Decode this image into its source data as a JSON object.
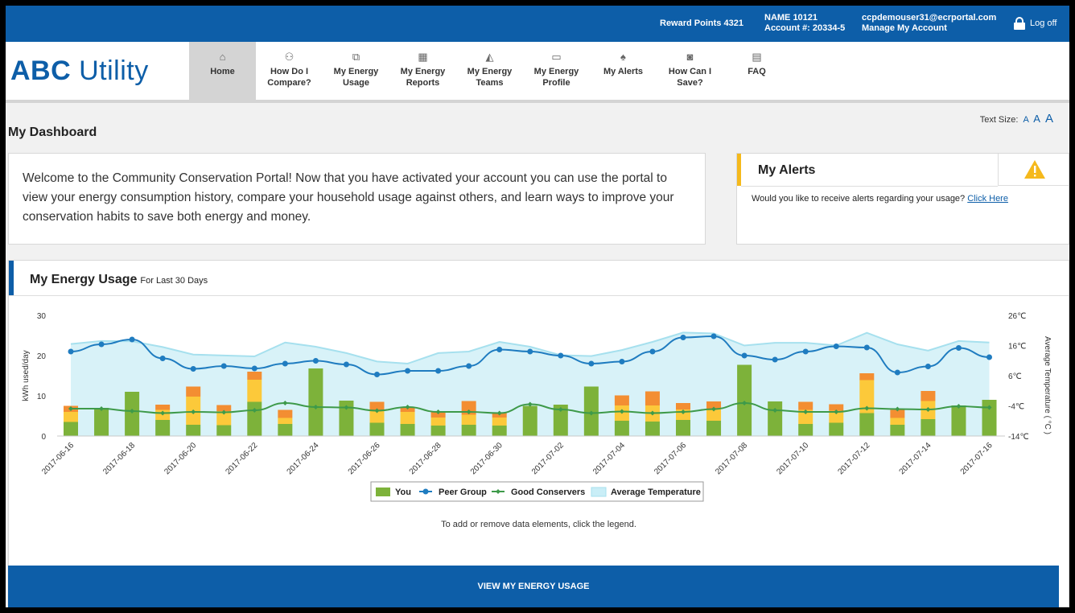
{
  "topbar": {
    "reward": "Reward Points 4321",
    "name": "NAME 10121",
    "account": "Account #: 20334-5",
    "email": "ccpdemouser31@ecrportal.com",
    "manage": "Manage My Account",
    "logoff": "Log off"
  },
  "brand": {
    "bold": "ABC",
    "rest": "Utility"
  },
  "nav": [
    {
      "label1": "Home",
      "label2": "",
      "icon": "home-icon",
      "glyph": "⌂"
    },
    {
      "label1": "How Do I",
      "label2": "Compare?",
      "icon": "people-icon",
      "glyph": "⚇"
    },
    {
      "label1": "My Energy",
      "label2": "Usage",
      "icon": "documents-icon",
      "glyph": "⧉"
    },
    {
      "label1": "My Energy",
      "label2": "Reports",
      "icon": "calendar-icon",
      "glyph": "▦"
    },
    {
      "label1": "My Energy",
      "label2": "Teams",
      "icon": "area-chart-icon",
      "glyph": "◭"
    },
    {
      "label1": "My Energy",
      "label2": "Profile",
      "icon": "folder-icon",
      "glyph": "▭"
    },
    {
      "label1": "My Alerts",
      "label2": "",
      "icon": "bell-icon",
      "glyph": "♠"
    },
    {
      "label1": "How Can I",
      "label2": "Save?",
      "icon": "savings-icon",
      "glyph": "◙"
    },
    {
      "label1": "FAQ",
      "label2": "",
      "icon": "file-icon",
      "glyph": "▤"
    }
  ],
  "textsize": {
    "label": "Text Size:",
    "a": "A"
  },
  "page_title": "My Dashboard",
  "welcome": "Welcome to the Community Conservation Portal! Now that you have activated your account you can use the portal to view your energy consumption history, compare your household usage against others, and learn ways to improve your conservation habits to save both energy and money.",
  "alerts": {
    "title": "My Alerts",
    "message": "Would you like to receive alerts regarding your usage?",
    "link": "Click Here"
  },
  "usage": {
    "title": "My Energy Usage",
    "subtitle": "For Last 30 Days",
    "hint": "To add or remove data elements, click the legend.",
    "button": "VIEW MY ENERGY USAGE"
  },
  "colors": {
    "brand": "#0d5ea8",
    "you": "#7db23a",
    "tier_yellow": "#fcc93a",
    "tier_orange": "#f38e32",
    "peer": "#1f7cc0",
    "good": "#3e9a4a",
    "temperature": "#d8f2f8",
    "temperature_line": "#a6e0ee",
    "warning": "#f5b91c"
  },
  "chart_data": {
    "type": "bar",
    "x": [
      "2017-06-16",
      "2017-06-17",
      "2017-06-18",
      "2017-06-19",
      "2017-06-20",
      "2017-06-21",
      "2017-06-22",
      "2017-06-23",
      "2017-06-24",
      "2017-06-25",
      "2017-06-26",
      "2017-06-27",
      "2017-06-28",
      "2017-06-29",
      "2017-06-30",
      "2017-07-01",
      "2017-07-02",
      "2017-07-03",
      "2017-07-04",
      "2017-07-05",
      "2017-07-06",
      "2017-07-07",
      "2017-07-08",
      "2017-07-09",
      "2017-07-10",
      "2017-07-11",
      "2017-07-12",
      "2017-07-13",
      "2017-07-14",
      "2017-07-15",
      "2017-07-16"
    ],
    "x_tick_labels": [
      "2017-06-16",
      "2017-06-18",
      "2017-06-20",
      "2017-06-22",
      "2017-06-24",
      "2017-06-26",
      "2017-06-28",
      "2017-06-30",
      "2017-07-02",
      "2017-07-04",
      "2017-07-06",
      "2017-07-08",
      "2017-07-10",
      "2017-07-12",
      "2017-07-14",
      "2017-07-16"
    ],
    "ylabel": "kWh used/day",
    "y2label": "Average Temperature ( °C )",
    "ylim": [
      0,
      30
    ],
    "y_ticks": [
      0,
      10,
      20,
      30
    ],
    "y2lim": [
      -14,
      26
    ],
    "y2_tick_labels": [
      "26℃",
      "16℃",
      "6℃",
      "-4℃",
      "-14℃"
    ],
    "series": [
      {
        "name": "You",
        "kind": "stacked-bar",
        "green": [
          3.5,
          7,
          11,
          4,
          2.8,
          2.7,
          8.5,
          3,
          16.8,
          8.8,
          3.3,
          3,
          2.6,
          2.8,
          2.6,
          7.5,
          7.8,
          12.3,
          3.8,
          3.6,
          4,
          3.8,
          17.7,
          8.6,
          3,
          3.3,
          5.7,
          2.8,
          4.2,
          7.6,
          9
        ],
        "yellow": [
          2.5,
          0,
          0,
          2.5,
          7,
          3.5,
          5.5,
          1.5,
          0,
          0,
          3,
          3,
          2,
          2.5,
          2,
          0,
          0,
          0,
          3.8,
          4,
          2.6,
          3,
          0,
          0,
          3.5,
          3,
          8.2,
          1.7,
          4.5,
          0,
          0
        ],
        "orange": [
          1.5,
          0,
          0,
          1.3,
          2.5,
          1.5,
          2,
          2,
          0,
          0,
          2.2,
          1,
          1.5,
          3.4,
          1.2,
          0,
          0,
          0,
          2.5,
          3.5,
          1.6,
          1.8,
          0,
          0,
          2,
          1.6,
          1.7,
          2,
          2.5,
          0,
          0
        ]
      },
      {
        "name": "Peer Group",
        "kind": "line",
        "values": [
          21,
          22.8,
          24,
          19.3,
          16.7,
          17.4,
          16.8,
          18,
          18.7,
          17.8,
          15.3,
          16.2,
          16.2,
          17.4,
          21.5,
          21,
          20,
          18,
          18.5,
          21,
          24.5,
          24.8,
          20,
          19,
          21,
          22.3,
          22,
          15.8,
          17.3,
          21.9,
          19.6
        ]
      },
      {
        "name": "Good Conservers",
        "kind": "line",
        "values": [
          6.8,
          6.8,
          6.2,
          5.7,
          6,
          5.9,
          6.4,
          8.2,
          7.2,
          7.1,
          6.3,
          7.2,
          6,
          6,
          5.7,
          7.9,
          6.6,
          5.7,
          6.1,
          5.7,
          6,
          6.7,
          8.2,
          6.4,
          6,
          6,
          6.9,
          6.7,
          6.6,
          7.4,
          7.1
        ]
      },
      {
        "name": "Average Temperature",
        "kind": "area",
        "values": [
          16.5,
          17.5,
          17.4,
          15.5,
          13,
          12.7,
          12.4,
          17,
          15.6,
          13.5,
          10.7,
          10,
          13.5,
          14,
          17.2,
          15.6,
          12.8,
          12.5,
          14.5,
          17.2,
          20.3,
          20,
          16,
          16.9,
          16.9,
          16,
          20.2,
          16.4,
          14.3,
          17.5,
          17
        ]
      }
    ],
    "legend": "bottom-center"
  }
}
